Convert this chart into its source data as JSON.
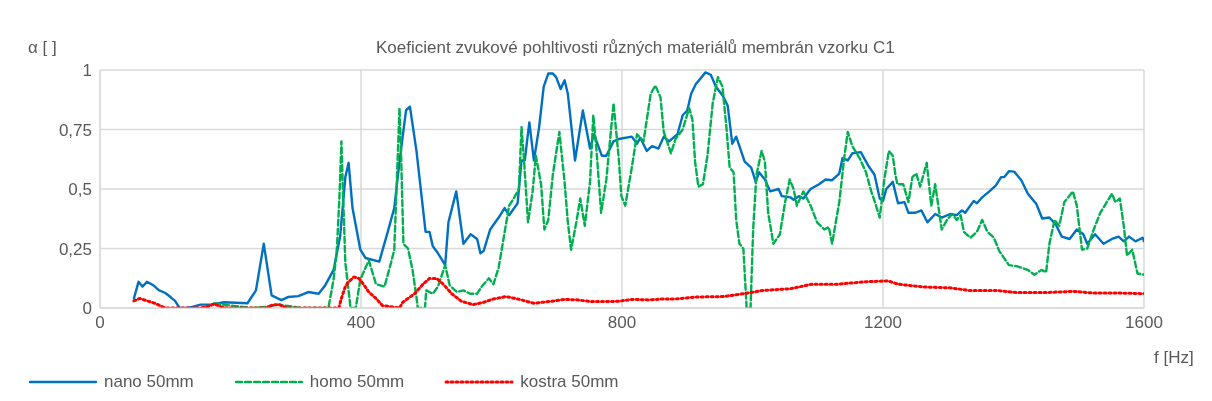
{
  "chart_data": {
    "type": "line",
    "title": "Koeficient zvukové pohltivosti různých materiálů membrán vzorku C1",
    "xlabel": "f [Hz]",
    "ylabel": "α [ ]",
    "xlim": [
      0,
      1600
    ],
    "xticks": [
      0,
      400,
      800,
      1200,
      1600
    ],
    "ylim": [
      0,
      1
    ],
    "yticks": [
      0,
      {
        "value": 0.25,
        "label": "0,25"
      },
      {
        "value": 0.5,
        "label": "0,5"
      },
      {
        "value": 0.75,
        "label": "0,75"
      },
      1
    ],
    "grid": true,
    "legend": "bottom",
    "marker": "none",
    "series": [
      {
        "name": "nano 50mm",
        "color": "#0070c0",
        "line_style": "solid",
        "x": [
          52,
          59,
          65,
          72,
          82,
          90,
          100,
          108,
          115,
          122,
          133,
          139,
          154,
          170,
          190,
          226,
          239,
          251,
          263,
          278,
          288,
          304,
          319,
          335,
          345,
          358,
          368,
          376,
          381,
          387,
          399,
          407,
          428,
          441,
          451,
          459,
          469,
          475,
          485,
          499,
          505,
          510,
          518,
          529,
          534,
          546,
          557,
          568,
          578,
          583,
          588,
          598,
          611,
          620,
          627,
          640,
          646,
          651,
          658,
          665,
          673,
          680,
          687,
          694,
          699,
          706,
          712,
          717,
          728,
          740,
          751,
          757,
          769,
          776,
          787,
          795,
          815,
          823,
          828,
          838,
          846,
          856,
          864,
          872,
          885,
          893,
          900,
          906,
          913,
          928,
          936,
          944,
          955,
          962,
          969,
          975,
          988,
          998,
          1005,
          1010,
          1019,
          1027,
          1040,
          1045,
          1058,
          1063,
          1071,
          1078,
          1089,
          1102,
          1112,
          1122,
          1133,
          1138,
          1146,
          1153,
          1166,
          1177,
          1187,
          1195,
          1200,
          1205,
          1215,
          1223,
          1233,
          1239,
          1249,
          1259,
          1268,
          1280,
          1290,
          1303,
          1313,
          1321,
          1326,
          1339,
          1344,
          1352,
          1363,
          1373,
          1381,
          1386,
          1393,
          1401,
          1412,
          1422,
          1435,
          1444,
          1455,
          1465,
          1474,
          1486,
          1497,
          1507,
          1513,
          1525,
          1538,
          1551,
          1561,
          1569,
          1577,
          1587,
          1598,
          1600
        ],
        "values": [
          0.04,
          0.11,
          0.09,
          0.11,
          0.095,
          0.075,
          0.063,
          0.046,
          0.03,
          0,
          0,
          0.003,
          0.014,
          0.014,
          0.024,
          0.02,
          0.074,
          0.27,
          0.053,
          0.033,
          0.046,
          0.05,
          0.067,
          0.06,
          0.095,
          0.16,
          0.3,
          0.55,
          0.61,
          0.42,
          0.245,
          0.21,
          0.195,
          0.32,
          0.42,
          0.615,
          0.83,
          0.846,
          0.66,
          0.32,
          0.32,
          0.26,
          0.23,
          0.18,
          0.36,
          0.49,
          0.27,
          0.31,
          0.29,
          0.23,
          0.24,
          0.33,
          0.38,
          0.42,
          0.39,
          0.44,
          0.62,
          0.62,
          0.78,
          0.62,
          0.76,
          0.93,
          0.985,
          0.985,
          0.97,
          0.92,
          0.957,
          0.9,
          0.62,
          0.83,
          0.67,
          0.73,
          0.64,
          0.64,
          0.7,
          0.71,
          0.72,
          0.69,
          0.715,
          0.66,
          0.68,
          0.67,
          0.72,
          0.7,
          0.73,
          0.81,
          0.83,
          0.9,
          0.94,
          0.99,
          0.98,
          0.93,
          0.89,
          0.85,
          0.69,
          0.72,
          0.615,
          0.59,
          0.53,
          0.57,
          0.54,
          0.49,
          0.5,
          0.47,
          0.465,
          0.455,
          0.47,
          0.46,
          0.5,
          0.52,
          0.54,
          0.537,
          0.565,
          0.63,
          0.62,
          0.65,
          0.655,
          0.6,
          0.56,
          0.46,
          0.45,
          0.5,
          0.53,
          0.44,
          0.445,
          0.4,
          0.4,
          0.41,
          0.36,
          0.395,
          0.38,
          0.395,
          0.39,
          0.41,
          0.4,
          0.45,
          0.44,
          0.465,
          0.49,
          0.515,
          0.55,
          0.55,
          0.575,
          0.573,
          0.537,
          0.48,
          0.437,
          0.376,
          0.38,
          0.35,
          0.3,
          0.29,
          0.33,
          0.31,
          0.27,
          0.31,
          0.27,
          0.29,
          0.3,
          0.28,
          0.3,
          0.28,
          0.295,
          0.28
        ]
      },
      {
        "name": "homo 50mm",
        "color": "#00b050",
        "line_style": "dashed",
        "x": [
          175,
          201,
          232,
          257,
          273,
          294,
          309,
          350,
          358,
          363,
          367,
          370,
          372,
          376,
          384,
          392,
          399,
          412,
          423,
          436,
          446,
          451,
          456,
          459,
          461,
          465,
          472,
          479,
          485,
          487,
          498,
          500,
          510,
          518,
          529,
          536,
          547,
          557,
          567,
          578,
          585,
          596,
          603,
          611,
          619,
          627,
          634,
          642,
          646,
          650,
          656,
          663,
          668,
          676,
          681,
          687,
          694,
          704,
          712,
          717,
          722,
          730,
          736,
          743,
          751,
          756,
          761,
          768,
          776,
          787,
          795,
          799,
          805,
          815,
          823,
          833,
          844,
          851,
          859,
          864,
          869,
          875,
          882,
          893,
          903,
          908,
          912,
          917,
          924,
          931,
          939,
          947,
          954,
          960,
          965,
          971,
          975,
          980,
          986,
          991,
          997,
          1001,
          1006,
          1014,
          1019,
          1024,
          1032,
          1042,
          1050,
          1057,
          1063,
          1068,
          1078,
          1089,
          1099,
          1110,
          1117,
          1122,
          1133,
          1141,
          1146,
          1153,
          1164,
          1174,
          1182,
          1187,
          1195,
          1202,
          1209,
          1215,
          1219,
          1222,
          1231,
          1239,
          1245,
          1251,
          1257,
          1267,
          1274,
          1280,
          1290,
          1298,
          1306,
          1313,
          1319,
          1324,
          1334,
          1344,
          1352,
          1360,
          1370,
          1378,
          1393,
          1406,
          1422,
          1432,
          1443,
          1450,
          1455,
          1463,
          1470,
          1478,
          1491,
          1497,
          1505,
          1513,
          1523,
          1533,
          1543,
          1551,
          1556,
          1563,
          1569,
          1574,
          1582,
          1590,
          1600
        ],
        "values": [
          0.02,
          0.01,
          0,
          0.006,
          0.014,
          0.006,
          0,
          0,
          0.12,
          0.245,
          0.47,
          0.7,
          0.52,
          0.19,
          0,
          0,
          0.12,
          0.2,
          0.1,
          0.09,
          0.19,
          0.245,
          0.615,
          0.84,
          0.69,
          0.27,
          0.25,
          0.16,
          0.046,
          0,
          0,
          0.074,
          0.06,
          0.09,
          0.18,
          0.095,
          0.067,
          0.074,
          0.06,
          0.06,
          0.09,
          0.125,
          0.1,
          0.17,
          0.3,
          0.43,
          0.46,
          0.5,
          0.76,
          0.615,
          0.36,
          0.49,
          0.64,
          0.52,
          0.33,
          0.37,
          0.56,
          0.74,
          0.53,
          0.36,
          0.245,
          0.36,
          0.46,
          0.345,
          0.53,
          0.81,
          0.66,
          0.4,
          0.54,
          0.86,
          0.63,
          0.47,
          0.43,
          0.59,
          0.73,
          0.7,
          0.9,
          0.935,
          0.885,
          0.74,
          0.7,
          0.65,
          0.71,
          0.75,
          0.84,
          0.79,
          0.615,
          0.51,
          0.52,
          0.64,
          0.86,
          0.97,
          0.93,
          0.76,
          0.59,
          0.57,
          0.37,
          0.27,
          0.25,
          0,
          0,
          0.33,
          0.56,
          0.66,
          0.615,
          0.4,
          0.27,
          0.31,
          0.445,
          0.54,
          0.5,
          0.43,
          0.49,
          0.43,
          0.36,
          0.33,
          0.34,
          0.27,
          0.445,
          0.64,
          0.74,
          0.68,
          0.63,
          0.57,
          0.49,
          0.45,
          0.38,
          0.54,
          0.66,
          0.64,
          0.56,
          0.52,
          0.52,
          0.445,
          0.55,
          0.565,
          0.51,
          0.61,
          0.43,
          0.52,
          0.33,
          0.37,
          0.395,
          0.37,
          0.39,
          0.32,
          0.295,
          0.32,
          0.37,
          0.32,
          0.295,
          0.24,
          0.18,
          0.175,
          0.16,
          0.14,
          0.16,
          0.15,
          0.27,
          0.37,
          0.345,
          0.445,
          0.49,
          0.43,
          0.245,
          0.25,
          0.33,
          0.4,
          0.445,
          0.48,
          0.445,
          0.46,
          0.345,
          0.22,
          0.245,
          0.145,
          0.14
        ]
      },
      {
        "name": "kostra 50mm",
        "color": "#ff0000",
        "line_style": "dotted",
        "x": [
          52,
          61,
          72,
          84,
          100,
          154,
          165,
          175,
          185,
          193,
          255,
          265,
          275,
          286,
          366,
          371,
          376,
          381,
          389,
          397,
          405,
          412,
          423,
          433,
          459,
          464,
          482,
          495,
          505,
          516,
          526,
          539,
          554,
          572,
          588,
          603,
          622,
          640,
          665,
          691,
          712,
          732,
          753,
          774,
          794,
          815,
          841,
          862,
          882,
          913,
          955,
          986,
          1017,
          1058,
          1091,
          1130,
          1172,
          1208,
          1223,
          1264,
          1301,
          1332,
          1373,
          1404,
          1450,
          1492,
          1522,
          1559,
          1600
        ],
        "values": [
          0.03,
          0.04,
          0.03,
          0.02,
          0,
          0,
          0.006,
          0.017,
          0.006,
          0,
          0,
          0.014,
          0.014,
          0,
          0,
          0.05,
          0.09,
          0.11,
          0.13,
          0.124,
          0.095,
          0.067,
          0.04,
          0.01,
          0,
          0.024,
          0.06,
          0.1,
          0.124,
          0.124,
          0.1,
          0.06,
          0.028,
          0.014,
          0.024,
          0.038,
          0.048,
          0.038,
          0.02,
          0.028,
          0.036,
          0.034,
          0.027,
          0.027,
          0.028,
          0.036,
          0.034,
          0.038,
          0.038,
          0.046,
          0.048,
          0.06,
          0.074,
          0.081,
          0.1,
          0.1,
          0.11,
          0.114,
          0.1,
          0.088,
          0.085,
          0.074,
          0.074,
          0.065,
          0.065,
          0.07,
          0.063,
          0.063,
          0.06
        ]
      }
    ]
  }
}
